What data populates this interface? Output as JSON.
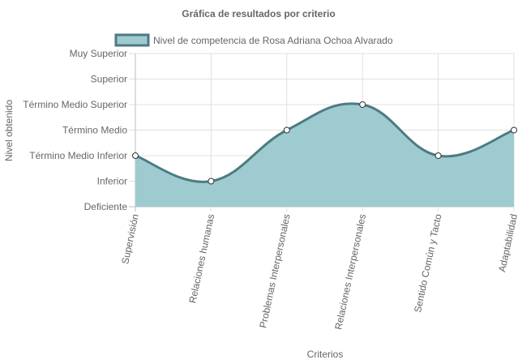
{
  "chart_data": {
    "type": "area",
    "title": "Gráfica de resultados por criterio",
    "xlabel": "Criterios",
    "ylabel": "Nivel obtenido",
    "y_levels": [
      "Deficiente",
      "Inferior",
      "Término Medio Inferior",
      "Término Medio",
      "Término Medio Superior",
      "Superior",
      "Muy Superior"
    ],
    "ylim": [
      0,
      6
    ],
    "grid": true,
    "legend_position": "top",
    "categories": [
      "Supervisión",
      "Relaciones humanas",
      "Problemas Interpersonales",
      "Relaciones Interpersonales",
      "Sentido Común y Tacto",
      "Adaptabilidad"
    ],
    "series": [
      {
        "name": "Nivel de competencia de Rosa Adriana Ochoa Alvarado",
        "values": [
          2,
          1,
          3,
          4,
          2,
          3
        ],
        "fill_color": "#9ecbcf",
        "line_color": "#4d7a83"
      }
    ]
  }
}
